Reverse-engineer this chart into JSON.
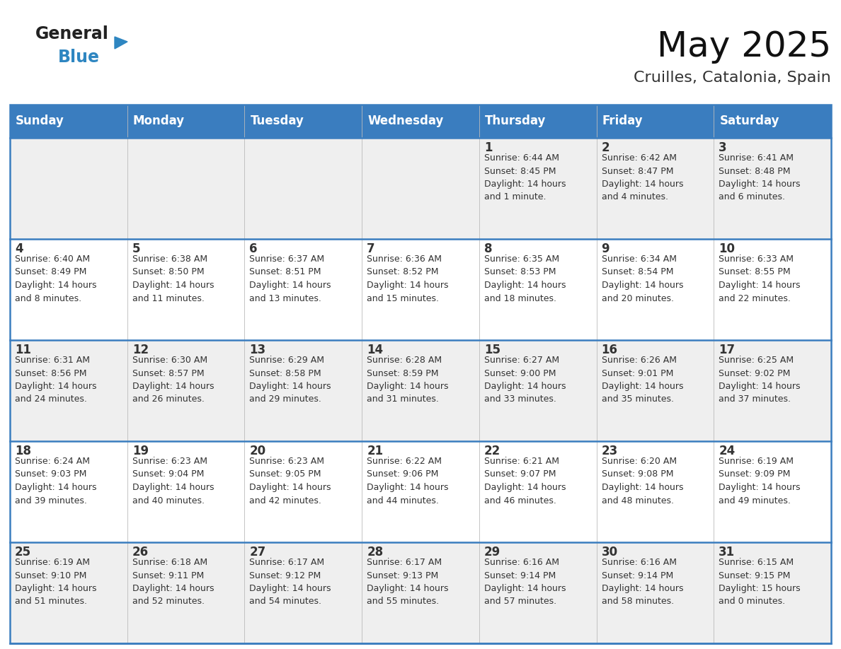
{
  "title": "May 2025",
  "subtitle": "Cruilles, Catalonia, Spain",
  "header_color": "#3a7dbf",
  "header_text_color": "#ffffff",
  "cell_bg": "#efefef",
  "cell_bg_white": "#ffffff",
  "border_color": "#3a7dbf",
  "week_border_color": "#3a7dbf",
  "text_color": "#333333",
  "day_names": [
    "Sunday",
    "Monday",
    "Tuesday",
    "Wednesday",
    "Thursday",
    "Friday",
    "Saturday"
  ],
  "weeks": [
    [
      {
        "day": "",
        "sunrise": "",
        "sunset": "",
        "daylight": ""
      },
      {
        "day": "",
        "sunrise": "",
        "sunset": "",
        "daylight": ""
      },
      {
        "day": "",
        "sunrise": "",
        "sunset": "",
        "daylight": ""
      },
      {
        "day": "",
        "sunrise": "",
        "sunset": "",
        "daylight": ""
      },
      {
        "day": "1",
        "sunrise": "6:44 AM",
        "sunset": "8:45 PM",
        "daylight": "14 hours\nand 1 minute."
      },
      {
        "day": "2",
        "sunrise": "6:42 AM",
        "sunset": "8:47 PM",
        "daylight": "14 hours\nand 4 minutes."
      },
      {
        "day": "3",
        "sunrise": "6:41 AM",
        "sunset": "8:48 PM",
        "daylight": "14 hours\nand 6 minutes."
      }
    ],
    [
      {
        "day": "4",
        "sunrise": "6:40 AM",
        "sunset": "8:49 PM",
        "daylight": "14 hours\nand 8 minutes."
      },
      {
        "day": "5",
        "sunrise": "6:38 AM",
        "sunset": "8:50 PM",
        "daylight": "14 hours\nand 11 minutes."
      },
      {
        "day": "6",
        "sunrise": "6:37 AM",
        "sunset": "8:51 PM",
        "daylight": "14 hours\nand 13 minutes."
      },
      {
        "day": "7",
        "sunrise": "6:36 AM",
        "sunset": "8:52 PM",
        "daylight": "14 hours\nand 15 minutes."
      },
      {
        "day": "8",
        "sunrise": "6:35 AM",
        "sunset": "8:53 PM",
        "daylight": "14 hours\nand 18 minutes."
      },
      {
        "day": "9",
        "sunrise": "6:34 AM",
        "sunset": "8:54 PM",
        "daylight": "14 hours\nand 20 minutes."
      },
      {
        "day": "10",
        "sunrise": "6:33 AM",
        "sunset": "8:55 PM",
        "daylight": "14 hours\nand 22 minutes."
      }
    ],
    [
      {
        "day": "11",
        "sunrise": "6:31 AM",
        "sunset": "8:56 PM",
        "daylight": "14 hours\nand 24 minutes."
      },
      {
        "day": "12",
        "sunrise": "6:30 AM",
        "sunset": "8:57 PM",
        "daylight": "14 hours\nand 26 minutes."
      },
      {
        "day": "13",
        "sunrise": "6:29 AM",
        "sunset": "8:58 PM",
        "daylight": "14 hours\nand 29 minutes."
      },
      {
        "day": "14",
        "sunrise": "6:28 AM",
        "sunset": "8:59 PM",
        "daylight": "14 hours\nand 31 minutes."
      },
      {
        "day": "15",
        "sunrise": "6:27 AM",
        "sunset": "9:00 PM",
        "daylight": "14 hours\nand 33 minutes."
      },
      {
        "day": "16",
        "sunrise": "6:26 AM",
        "sunset": "9:01 PM",
        "daylight": "14 hours\nand 35 minutes."
      },
      {
        "day": "17",
        "sunrise": "6:25 AM",
        "sunset": "9:02 PM",
        "daylight": "14 hours\nand 37 minutes."
      }
    ],
    [
      {
        "day": "18",
        "sunrise": "6:24 AM",
        "sunset": "9:03 PM",
        "daylight": "14 hours\nand 39 minutes."
      },
      {
        "day": "19",
        "sunrise": "6:23 AM",
        "sunset": "9:04 PM",
        "daylight": "14 hours\nand 40 minutes."
      },
      {
        "day": "20",
        "sunrise": "6:23 AM",
        "sunset": "9:05 PM",
        "daylight": "14 hours\nand 42 minutes."
      },
      {
        "day": "21",
        "sunrise": "6:22 AM",
        "sunset": "9:06 PM",
        "daylight": "14 hours\nand 44 minutes."
      },
      {
        "day": "22",
        "sunrise": "6:21 AM",
        "sunset": "9:07 PM",
        "daylight": "14 hours\nand 46 minutes."
      },
      {
        "day": "23",
        "sunrise": "6:20 AM",
        "sunset": "9:08 PM",
        "daylight": "14 hours\nand 48 minutes."
      },
      {
        "day": "24",
        "sunrise": "6:19 AM",
        "sunset": "9:09 PM",
        "daylight": "14 hours\nand 49 minutes."
      }
    ],
    [
      {
        "day": "25",
        "sunrise": "6:19 AM",
        "sunset": "9:10 PM",
        "daylight": "14 hours\nand 51 minutes."
      },
      {
        "day": "26",
        "sunrise": "6:18 AM",
        "sunset": "9:11 PM",
        "daylight": "14 hours\nand 52 minutes."
      },
      {
        "day": "27",
        "sunrise": "6:17 AM",
        "sunset": "9:12 PM",
        "daylight": "14 hours\nand 54 minutes."
      },
      {
        "day": "28",
        "sunrise": "6:17 AM",
        "sunset": "9:13 PM",
        "daylight": "14 hours\nand 55 minutes."
      },
      {
        "day": "29",
        "sunrise": "6:16 AM",
        "sunset": "9:14 PM",
        "daylight": "14 hours\nand 57 minutes."
      },
      {
        "day": "30",
        "sunrise": "6:16 AM",
        "sunset": "9:14 PM",
        "daylight": "14 hours\nand 58 minutes."
      },
      {
        "day": "31",
        "sunrise": "6:15 AM",
        "sunset": "9:15 PM",
        "daylight": "15 hours\nand 0 minutes."
      }
    ]
  ],
  "logo_text1": "General",
  "logo_text2": "Blue",
  "logo_color1": "#222222",
  "logo_color2": "#2e86c1",
  "logo_triangle_color": "#2e86c1",
  "title_fontsize": 36,
  "subtitle_fontsize": 16,
  "header_fontsize": 12,
  "day_num_fontsize": 12,
  "cell_text_fontsize": 9,
  "logo_fontsize": 17
}
